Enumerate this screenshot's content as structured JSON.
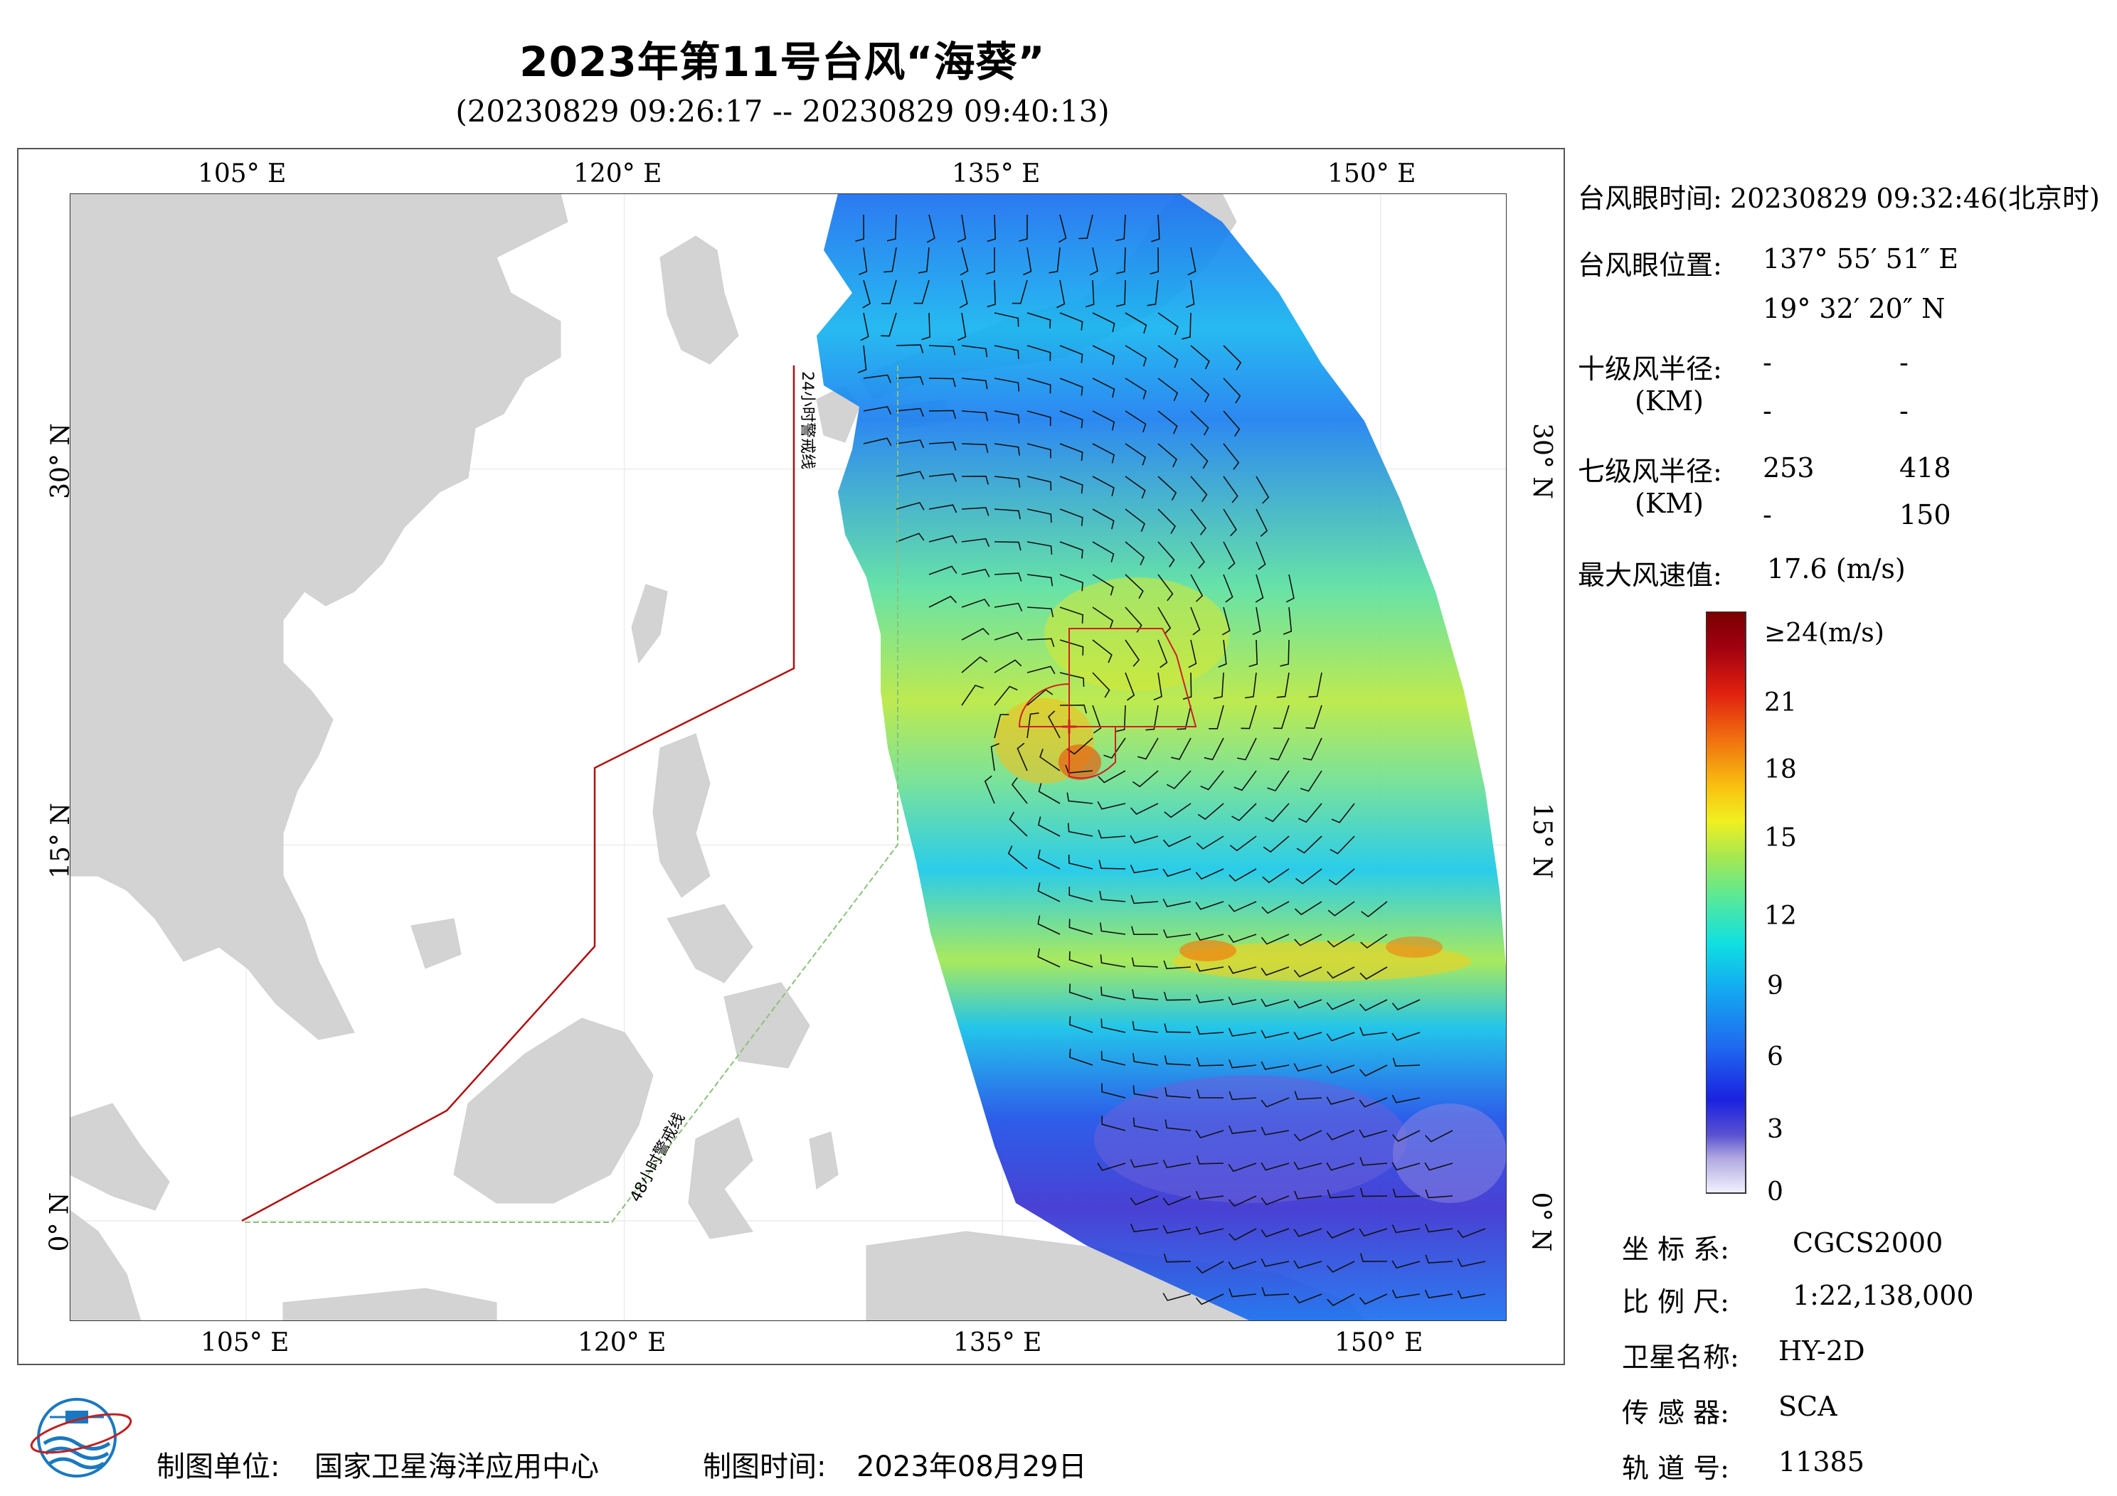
{
  "title": "2023年第11号台风“海葵”",
  "subtitle": "(20230829 09:26:17 -- 20230829 09:40:13)",
  "map": {
    "x_ticks": [
      "105° E",
      "120° E",
      "135° E",
      "150° E"
    ],
    "y_ticks": [
      "30° N",
      "15° N",
      "0° N"
    ],
    "line_24h": "24小时警戒线",
    "line_48h": "48小时警戒线",
    "lon_range": [
      98,
      155
    ],
    "lat_range": [
      -4,
      41
    ],
    "colors": {
      "land": "#d3d3d3",
      "sea": "#ffffff",
      "line_24h": "#b01010",
      "line_48h": "#8ac27a",
      "wind_radius": "#d02020"
    }
  },
  "info": {
    "eye_time_label": "台风眼时间:",
    "eye_time_value": "20230829 09:32:46(北京时)",
    "eye_pos_label": "台风眼位置:",
    "eye_lon": "137° 55′ 51″ E",
    "eye_lat": "19° 32′ 20″ N",
    "r10_label": "十级风半径:",
    "r10_unit": "(KM)",
    "r10_vals": [
      "-",
      "-",
      "-",
      "-"
    ],
    "r7_label": "七级风半径:",
    "r7_unit": "(KM)",
    "r7_vals": [
      "253",
      "418",
      "-",
      "150"
    ],
    "maxwind_label": "最大风速值:",
    "maxwind_value": "17.6  (m/s)"
  },
  "colorbar": {
    "labels": [
      "≥24(m/s)",
      "21",
      "18",
      "15",
      "12",
      "9",
      "6",
      "3",
      "0"
    ],
    "min": 0,
    "max": 24,
    "stops": [
      "#f2f2ff",
      "#b0a8e0",
      "#5a52d0",
      "#1a22e0",
      "#1f68f0",
      "#12b0f0",
      "#10e0e0",
      "#50e8a0",
      "#a8e850",
      "#f0f020",
      "#f8c010",
      "#f07010",
      "#e02010",
      "#a00010",
      "#780000"
    ]
  },
  "meta": {
    "crs_label": "坐 标 系:",
    "crs_value": "CGCS2000",
    "scale_label": "比 例 尺:",
    "scale_value": "1:22,138,000",
    "sat_label": "卫星名称:",
    "sat_value": "HY-2D",
    "sensor_label": "传 感 器:",
    "sensor_value": "SCA",
    "orbit_label": "轨 道 号:",
    "orbit_value": "11385"
  },
  "footer": {
    "org_label": "制图单位:",
    "org_value": "国家卫星海洋应用中心",
    "date_label": "制图时间:",
    "date_value": "2023年08月29日"
  }
}
